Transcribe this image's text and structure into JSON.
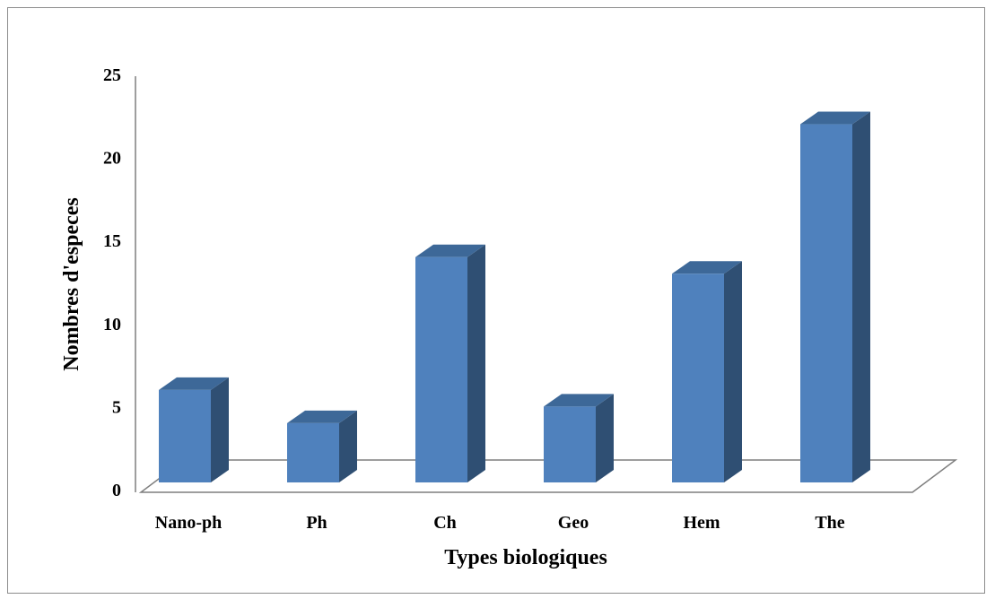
{
  "chart_data": {
    "type": "bar",
    "categories": [
      "Nano-ph",
      "Ph",
      "Ch",
      "Geo",
      "Hem",
      "The"
    ],
    "values": [
      6,
      4,
      14,
      5,
      13,
      22
    ],
    "title": "",
    "xlabel": "Types biologiques",
    "ylabel": "Nombres d'especes",
    "ylim": [
      0,
      25
    ],
    "yticks": [
      "0",
      "5",
      "10",
      "15",
      "20",
      "25"
    ],
    "grid": false,
    "style": "3d-column",
    "colors": {
      "bar_front": "#4F81BD",
      "bar_side": "#2F4F73",
      "bar_top": "#3D6898",
      "floor_line": "#7f7f7f"
    }
  }
}
